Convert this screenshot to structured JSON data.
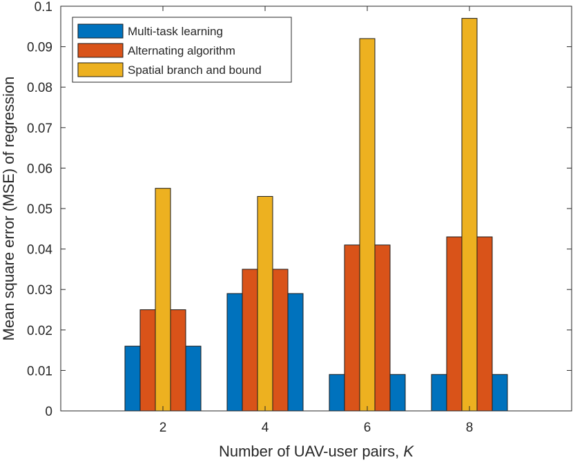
{
  "chart_data": {
    "type": "bar",
    "categories": [
      "2",
      "4",
      "6",
      "8"
    ],
    "x": [
      2,
      4,
      6,
      8
    ],
    "xlim": [
      0,
      10
    ],
    "ylim": [
      0,
      0.1
    ],
    "yticks": [
      "0",
      "0.01",
      "0.02",
      "0.03",
      "0.04",
      "0.05",
      "0.06",
      "0.07",
      "0.08",
      "0.09",
      "0.1"
    ],
    "xlabel": "Number of UAV-user pairs, ",
    "xlabel_var": "K",
    "ylabel": "Mean square error (MSE) of regression",
    "legend_position": "top-left",
    "grid": false,
    "series": [
      {
        "name": "Multi-task learning",
        "values": [
          0.016,
          0.029,
          0.009,
          0.009
        ],
        "color": "#0072BD"
      },
      {
        "name": "Alternating algorithm",
        "values": [
          0.025,
          0.035,
          0.041,
          0.043
        ],
        "color": "#D95319"
      },
      {
        "name": "Spatial branch and bound",
        "values": [
          0.055,
          0.053,
          0.092,
          0.097
        ],
        "color": "#EDB120"
      }
    ]
  }
}
